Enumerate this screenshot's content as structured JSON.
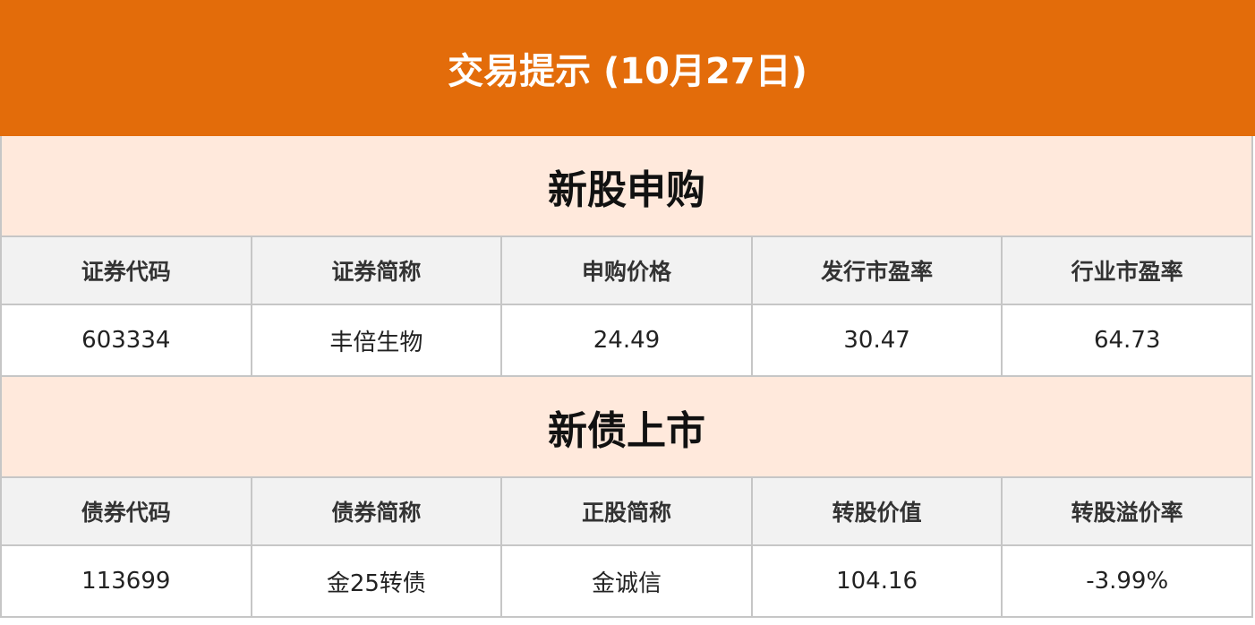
{
  "title": "交易提示 (10月27日)",
  "ipo": {
    "section_title": "新股申购",
    "headers": [
      "证券代码",
      "证券简称",
      "申购价格",
      "发行市盈率",
      "行业市盈率"
    ],
    "rows": [
      [
        "603334",
        "丰倍生物",
        "24.49",
        "30.47",
        "64.73"
      ]
    ]
  },
  "bonds": {
    "section_title": "新债上市",
    "headers": [
      "债券代码",
      "债券简称",
      "正股简称",
      "转股价值",
      "转股溢价率"
    ],
    "rows": [
      [
        "113699",
        "金25转债",
        "金诚信",
        "104.16",
        "-3.99%"
      ]
    ]
  },
  "colors": {
    "banner": "#E36C0A",
    "section_bg": "#FFE9DC",
    "header_bg": "#F2F2F2"
  }
}
